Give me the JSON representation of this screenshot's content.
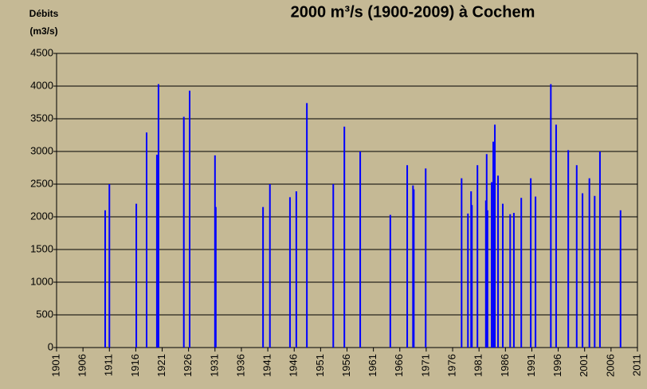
{
  "chart_data": {
    "type": "bar",
    "title": "2000 m³/s  (1900-2009) à Cochem",
    "ylabel": [
      "Débits",
      "(m3/s)"
    ],
    "x": [
      1910.2,
      1911.0,
      1916.1,
      1918.05,
      1920.0,
      1920.3,
      1925.1,
      1926.2,
      1931.0,
      1931.15,
      1940.1,
      1941.4,
      1945.2,
      1946.4,
      1948.4,
      1953.4,
      1955.5,
      1958.5,
      1964.2,
      1967.4,
      1968.5,
      1968.65,
      1970.9,
      1977.7,
      1978.9,
      1979.5,
      1979.65,
      1980.7,
      1982.3,
      1982.45,
      1982.6,
      1983.4,
      1983.7,
      1984.0,
      1984.6,
      1985.5,
      1986.9,
      1987.6,
      1989.0,
      1990.8,
      1991.7,
      1994.6,
      1995.6,
      1997.9,
      1999.5,
      2000.6,
      2001.9,
      2002.9,
      2003.9,
      2007.8
    ],
    "values": [
      2100,
      2500,
      2200,
      3290,
      2950,
      4030,
      3530,
      3930,
      2940,
      2150,
      2150,
      2500,
      2300,
      2390,
      3740,
      2500,
      3380,
      3000,
      2030,
      2790,
      2480,
      2420,
      2740,
      2590,
      2050,
      2390,
      2180,
      2790,
      2250,
      2960,
      2100,
      2530,
      3150,
      3410,
      2630,
      2200,
      2040,
      2060,
      2290,
      2590,
      2310,
      4030,
      3410,
      3020,
      2790,
      2360,
      2590,
      2320,
      3000,
      2100
    ],
    "color": "#0000ff",
    "xlim": [
      1901,
      2011
    ],
    "xticks": [
      1901,
      1906,
      1911,
      1916,
      1921,
      1926,
      1931,
      1936,
      1941,
      1946,
      1951,
      1956,
      1961,
      1966,
      1971,
      1976,
      1981,
      1986,
      1991,
      1996,
      2001,
      2006,
      2011
    ],
    "ylim": [
      0,
      4500
    ],
    "yticks": [
      0,
      500,
      1000,
      1500,
      2000,
      2500,
      3000,
      3500,
      4000,
      4500
    ],
    "grid": true
  }
}
